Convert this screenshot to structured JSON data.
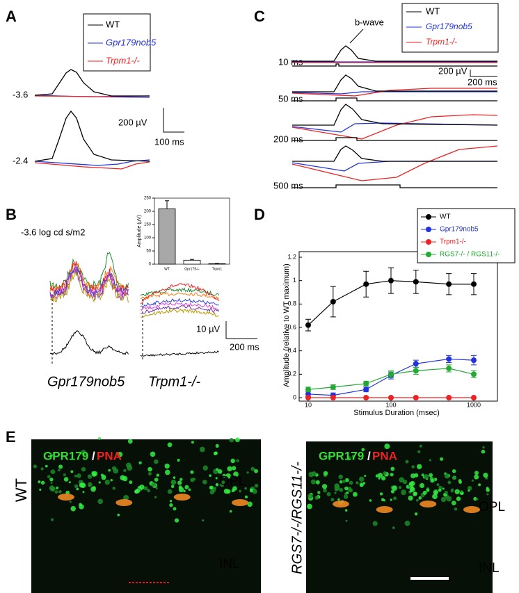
{
  "panel_a": {
    "label": "A",
    "legend": [
      "WT",
      "Gpr179nob5",
      "Trpm1-/-"
    ],
    "traces": [
      "-3.6",
      "-2.4"
    ],
    "scale_y": "200 µV",
    "scale_x": "100 ms"
  },
  "panel_b": {
    "label": "B",
    "stimulus": "-3.6 log cd s/m2",
    "scale_y": "10 µV",
    "scale_x": "200 ms",
    "groups": [
      "Gpr179nob5",
      "Trpm1-/-"
    ]
  },
  "panel_c": {
    "label": "C",
    "annotation": "b-wave",
    "legend": [
      "WT",
      "Gpr179nob5",
      "Trpm1-/-"
    ],
    "durations": [
      "10 ms",
      "50 ms",
      "200 ms",
      "500 ms"
    ],
    "scale_y": "200 µV",
    "scale_x": "200 ms"
  },
  "panel_d": {
    "label": "D"
  },
  "panel_e": {
    "label": "E",
    "left": {
      "genotype": "WT",
      "stain": [
        "GPR179",
        "/",
        "PNA"
      ],
      "layers": [
        "OPL",
        "INL"
      ]
    },
    "right": {
      "genotype": "RGS7-/-/RGS11-/-",
      "stain": [
        "GPR179",
        "/",
        "PNA"
      ],
      "layers": [
        "OPL",
        "INL"
      ]
    }
  },
  "chart_data": [
    {
      "type": "bar",
      "y_label": "Amplitude (µV)",
      "categories": [
        "WT",
        "Gpr179-/-",
        "Trpm1"
      ],
      "values": [
        210,
        15,
        2
      ],
      "errors": [
        30,
        3,
        1
      ],
      "colors": [
        "#a8a8a8",
        "#ffffff",
        "#ffffff"
      ],
      "ylim": [
        0,
        250
      ],
      "yticks": [
        0,
        50,
        100,
        150,
        200,
        250
      ]
    },
    {
      "type": "line",
      "x_label": "Stimulus Duration (msec)",
      "y_label": "Amplitude (relative to WT maximum)",
      "xscale": "log",
      "legend": "top right",
      "x": [
        10,
        20,
        50,
        100,
        200,
        500,
        1000
      ],
      "xlim": [
        10,
        1000
      ],
      "xticks": [
        10,
        100,
        1000
      ],
      "ylim": [
        0,
        1.2
      ],
      "yticks": [
        0,
        0.2,
        0.4,
        0.6,
        0.8,
        1,
        1.2
      ],
      "series": [
        {
          "name": "WT",
          "color": "#000000",
          "values": [
            0.62,
            0.82,
            0.97,
            1.0,
            0.99,
            0.97,
            0.97
          ],
          "errors": [
            0.05,
            0.13,
            0.11,
            0.11,
            0.1,
            0.09,
            0.09
          ]
        },
        {
          "name": "Gpr179nob5",
          "color": "#2233dd",
          "values": [
            0.03,
            0.02,
            0.07,
            0.19,
            0.29,
            0.33,
            0.32
          ],
          "errors": [
            0.02,
            0.02,
            0.02,
            0.03,
            0.03,
            0.03,
            0.04
          ]
        },
        {
          "name": "Trpm1-/-",
          "color": "#ee2222",
          "values": [
            0,
            0,
            0,
            0,
            0,
            0,
            0
          ],
          "errors": [
            0,
            0,
            0,
            0,
            0,
            0,
            0
          ]
        },
        {
          "name": "RGS7-/- / RGS11-/-",
          "color": "#22aa33",
          "values": [
            0.07,
            0.09,
            0.12,
            0.2,
            0.23,
            0.25,
            0.2
          ],
          "errors": [
            0.02,
            0.02,
            0.02,
            0.03,
            0.03,
            0.03,
            0.03
          ]
        }
      ]
    }
  ]
}
